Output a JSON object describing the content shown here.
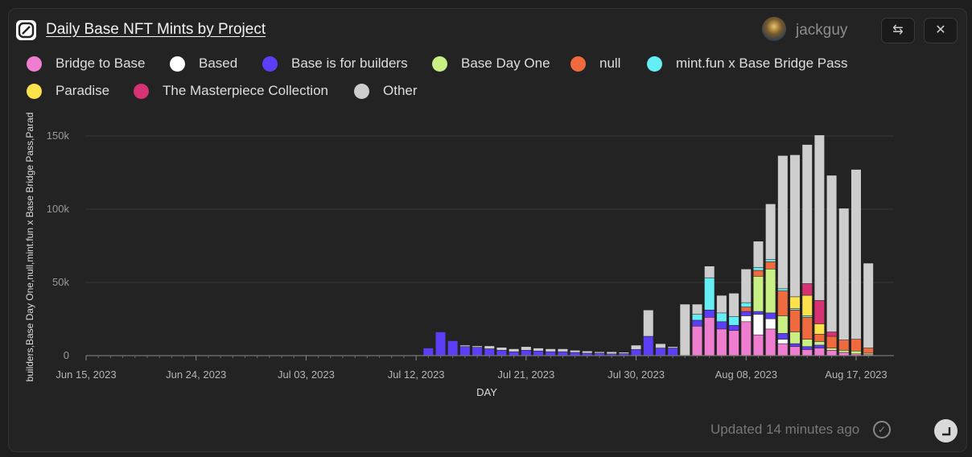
{
  "header": {
    "title": "Daily Base NFT Mints by Project",
    "user": "jackguy"
  },
  "footer": {
    "updated": "Updated 14 minutes ago"
  },
  "chart_data": {
    "type": "bar",
    "stacked": true,
    "title": "Daily Base NFT Mints by Project",
    "xlabel": "DAY",
    "ylabel": "builders,Base Day One,null,mint.fun x Base Bridge Pass,Parad",
    "ylim": [
      0,
      150000
    ],
    "yticks": [
      0,
      50000,
      100000,
      150000
    ],
    "ytick_labels": [
      "0",
      "50k",
      "100k",
      "150k"
    ],
    "xtick_labels": [
      "Jun 15, 2023",
      "Jun 24, 2023",
      "Jul 03, 2023",
      "Jul 12, 2023",
      "Jul 21, 2023",
      "Jul 30, 2023",
      "Aug 08, 2023",
      "Aug 17, 2023"
    ],
    "grid": true,
    "legend_position": "top-left",
    "categories": [
      "Jul 13, 2023",
      "Jul 14, 2023",
      "Jul 15, 2023",
      "Jul 16, 2023",
      "Jul 17, 2023",
      "Jul 18, 2023",
      "Jul 19, 2023",
      "Jul 20, 2023",
      "Jul 21, 2023",
      "Jul 22, 2023",
      "Jul 23, 2023",
      "Jul 24, 2023",
      "Jul 25, 2023",
      "Jul 26, 2023",
      "Jul 27, 2023",
      "Jul 28, 2023",
      "Jul 29, 2023",
      "Jul 30, 2023",
      "Jul 31, 2023",
      "Aug 01, 2023",
      "Aug 02, 2023",
      "Aug 03, 2023",
      "Aug 04, 2023",
      "Aug 05, 2023",
      "Aug 06, 2023",
      "Aug 07, 2023",
      "Aug 08, 2023",
      "Aug 09, 2023",
      "Aug 10, 2023",
      "Aug 11, 2023",
      "Aug 12, 2023",
      "Aug 13, 2023",
      "Aug 14, 2023",
      "Aug 15, 2023",
      "Aug 16, 2023",
      "Aug 17, 2023",
      "Aug 18, 2023"
    ],
    "series": [
      {
        "name": "Bridge to Base",
        "color": "#f07ed0",
        "values": [
          0,
          0,
          0,
          0,
          0,
          0,
          0,
          0,
          0,
          0,
          0,
          0,
          0,
          0,
          0,
          0,
          0,
          0,
          0,
          0,
          0,
          0,
          20000,
          26000,
          18000,
          17000,
          23000,
          14000,
          18000,
          8000,
          6000,
          4000,
          5000,
          3500,
          2000,
          1000,
          500
        ]
      },
      {
        "name": "Based",
        "color": "#ffffff",
        "values": [
          0,
          0,
          0,
          0,
          0,
          0,
          0,
          0,
          0,
          0,
          0,
          0,
          0,
          0,
          0,
          0,
          0,
          0,
          0,
          0,
          0,
          0,
          0,
          0,
          0,
          0,
          4000,
          14000,
          7000,
          3000,
          0,
          0,
          0,
          0,
          0,
          0,
          0
        ]
      },
      {
        "name": "Base is for builders",
        "color": "#5b3ef5",
        "values": [
          5000,
          16000,
          10000,
          6000,
          5500,
          4500,
          3500,
          2500,
          3500,
          3000,
          2500,
          2500,
          2000,
          1500,
          1500,
          1000,
          1200,
          4000,
          13000,
          5000,
          5000,
          0,
          4000,
          5000,
          5000,
          3500,
          3000,
          2000,
          4000,
          4000,
          2000,
          2000,
          2000,
          0,
          0,
          0,
          0
        ]
      },
      {
        "name": "Base Day One",
        "color": "#c9f085",
        "values": [
          0,
          0,
          0,
          0,
          0,
          0,
          0,
          0,
          0,
          0,
          0,
          0,
          0,
          0,
          0,
          0,
          0,
          0,
          0,
          0,
          0,
          0,
          0,
          0,
          0,
          0,
          0,
          24000,
          30000,
          12000,
          8000,
          5000,
          2500,
          1500,
          1500,
          2000,
          1000
        ]
      },
      {
        "name": "null",
        "color": "#f06a40",
        "values": [
          0,
          0,
          0,
          0,
          0,
          0,
          0,
          0,
          0,
          0,
          0,
          0,
          0,
          0,
          0,
          0,
          0,
          0,
          0,
          0,
          0,
          0,
          0,
          0,
          0,
          0,
          3000,
          4000,
          5000,
          17000,
          15000,
          15000,
          5000,
          8000,
          7000,
          8000,
          3500
        ]
      },
      {
        "name": "mint.fun x Base Bridge Pass",
        "color": "#66eef5",
        "values": [
          0,
          0,
          0,
          0,
          0,
          0,
          0,
          0,
          0,
          0,
          0,
          0,
          0,
          0,
          0,
          0,
          0,
          0,
          0,
          0,
          0,
          0,
          4000,
          22000,
          6000,
          6000,
          3000,
          2000,
          1500,
          1500,
          1000,
          1000,
          0,
          0,
          0,
          0,
          0
        ]
      },
      {
        "name": "Paradise",
        "color": "#fbe14b",
        "values": [
          0,
          0,
          0,
          0,
          0,
          0,
          0,
          0,
          0,
          0,
          0,
          0,
          0,
          0,
          0,
          0,
          0,
          0,
          0,
          0,
          0,
          0,
          0,
          0,
          0,
          0,
          0,
          0,
          0,
          0,
          8000,
          14000,
          7000,
          0,
          0,
          0,
          0
        ]
      },
      {
        "name": "The Masterpiece Collection",
        "color": "#d63274",
        "values": [
          0,
          0,
          0,
          0,
          0,
          0,
          0,
          0,
          0,
          0,
          0,
          0,
          0,
          0,
          0,
          0,
          0,
          0,
          0,
          0,
          0,
          0,
          0,
          0,
          0,
          0,
          0,
          0,
          0,
          0,
          0,
          8000,
          16000,
          3000,
          0,
          0,
          0
        ]
      },
      {
        "name": "Other",
        "color": "#cdcdcd",
        "values": [
          0,
          0,
          0,
          1000,
          1000,
          2000,
          2000,
          2000,
          2500,
          2000,
          2000,
          2000,
          1500,
          1500,
          1000,
          1500,
          1000,
          3000,
          18000,
          3000,
          1000,
          35000,
          7000,
          8000,
          12000,
          16000,
          23000,
          18000,
          38000,
          91000,
          97000,
          95000,
          113000,
          107000,
          90000,
          116000,
          58000
        ]
      }
    ]
  }
}
